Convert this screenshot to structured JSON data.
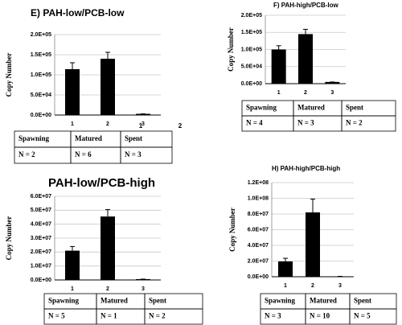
{
  "chart_data": [
    {
      "type": "bar",
      "title": "E)  PAH-low/PCB-low",
      "ylabel": "Copy Number",
      "color": "#000000",
      "categories": [
        "1",
        "2",
        "3"
      ],
      "values": [
        114000,
        140000,
        3000
      ],
      "errors": [
        16000,
        16000,
        0
      ],
      "ylim": [
        0,
        200000
      ],
      "yticks": [
        {
          "value": 0,
          "label": "0.0E+00"
        },
        {
          "value": 50000,
          "label": "5.0E+04"
        },
        {
          "value": 100000,
          "label": "1.0E+05"
        },
        {
          "value": 150000,
          "label": "1.5E+05"
        },
        {
          "value": 200000,
          "label": "2.0E+05"
        }
      ],
      "grid": true,
      "annotations": [
        "1",
        "2"
      ],
      "table": [
        [
          "Spawning",
          "Matured",
          "Spent"
        ],
        [
          "N = 2",
          "N = 6",
          "N = 3"
        ]
      ]
    },
    {
      "type": "bar",
      "title": "F)     PAH-high/PCB-low",
      "ylabel": "Copy Number",
      "color": "#000000",
      "categories": [
        "1",
        "2",
        "3"
      ],
      "values": [
        100000,
        145000,
        5000
      ],
      "errors": [
        11000,
        14000,
        0
      ],
      "ylim": [
        0,
        200000
      ],
      "yticks": [
        {
          "value": 0,
          "label": "0.0E+00"
        },
        {
          "value": 50000,
          "label": "5.0E+04"
        },
        {
          "value": 100000,
          "label": "1.0E+05"
        },
        {
          "value": 150000,
          "label": "1.5E+05"
        },
        {
          "value": 200000,
          "label": "2.0E+05"
        }
      ],
      "grid": true,
      "table": [
        [
          "Spawning",
          "Matured",
          "Spent"
        ],
        [
          "N = 4",
          "N = 3",
          "N = 2"
        ]
      ]
    },
    {
      "type": "bar",
      "title": "PAH-low/PCB-high",
      "ylabel": "Copy Number",
      "color": "#000000",
      "categories": [
        "1",
        "2",
        "3"
      ],
      "values": [
        21000000,
        45500000,
        600000
      ],
      "errors": [
        3000000,
        5000000,
        0
      ],
      "ylim": [
        0,
        60000000
      ],
      "yticks": [
        {
          "value": 0,
          "label": "0.0E+00"
        },
        {
          "value": 10000000,
          "label": "1.0E+07"
        },
        {
          "value": 20000000,
          "label": "2.0E+07"
        },
        {
          "value": 30000000,
          "label": "3.0E+07"
        },
        {
          "value": 40000000,
          "label": "4.0E+07"
        },
        {
          "value": 50000000,
          "label": "5.0E+07"
        },
        {
          "value": 60000000,
          "label": "6.0E+07"
        }
      ],
      "grid": true,
      "table": [
        [
          "Spawning",
          "Matured",
          "Spent"
        ],
        [
          "N = 5",
          "N = 1",
          "N = 2"
        ]
      ]
    },
    {
      "type": "bar",
      "title": "H)     PAH-high/PCB-high",
      "ylabel": "Copy Number",
      "color": "#000000",
      "categories": [
        "1",
        "2",
        "3"
      ],
      "values": [
        19500000,
        82000000,
        500000
      ],
      "errors": [
        4000000,
        17000000,
        0
      ],
      "ylim": [
        0,
        120000000
      ],
      "yticks": [
        {
          "value": 0,
          "label": "0.0E+00"
        },
        {
          "value": 20000000,
          "label": "2.0E+07"
        },
        {
          "value": 40000000,
          "label": "4.0E+07"
        },
        {
          "value": 60000000,
          "label": "6.0E+07"
        },
        {
          "value": 80000000,
          "label": "8.0E+07"
        },
        {
          "value": 100000000,
          "label": "1.0E+08"
        },
        {
          "value": 120000000,
          "label": "1.2E+08"
        }
      ],
      "grid": true,
      "table": [
        [
          "Spawning",
          "Matured",
          "Spent"
        ],
        [
          "N = 3",
          "N = 10",
          "N = 5"
        ]
      ]
    }
  ]
}
